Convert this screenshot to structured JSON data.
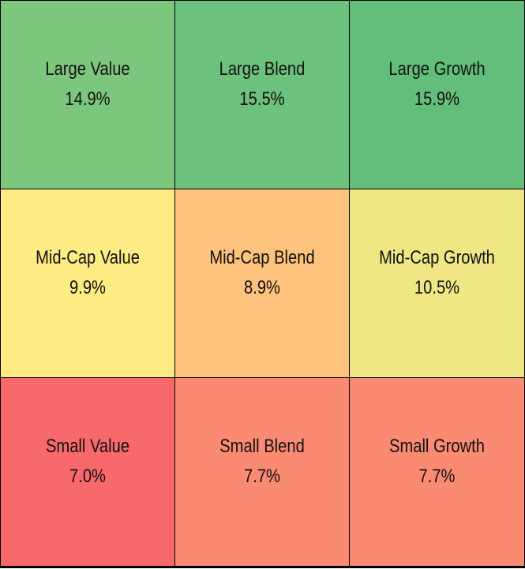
{
  "chart_data": {
    "type": "heatmap",
    "rows": [
      "Large",
      "Mid-Cap",
      "Small"
    ],
    "columns": [
      "Value",
      "Blend",
      "Growth"
    ],
    "cells": [
      {
        "label": "Large Value",
        "value": 14.9,
        "display": "14.9%",
        "color": "#7DC67E"
      },
      {
        "label": "Large Blend",
        "value": 15.5,
        "display": "15.5%",
        "color": "#6CC17D"
      },
      {
        "label": "Large Growth",
        "value": 15.9,
        "display": "15.9%",
        "color": "#63BE7B"
      },
      {
        "label": "Mid-Cap Value",
        "value": 9.9,
        "display": "9.9%",
        "color": "#FFEB84"
      },
      {
        "label": "Mid-Cap Blend",
        "value": 8.9,
        "display": "8.9%",
        "color": "#FDC27C"
      },
      {
        "label": "Mid-Cap Growth",
        "value": 10.5,
        "display": "10.5%",
        "color": "#EFE684"
      },
      {
        "label": "Small Value",
        "value": 7.0,
        "display": "7.0%",
        "color": "#F8696B"
      },
      {
        "label": "Small Blend",
        "value": 7.7,
        "display": "7.7%",
        "color": "#FA8A72"
      },
      {
        "label": "Small Growth",
        "value": 7.7,
        "display": "7.7%",
        "color": "#FA8A72"
      }
    ]
  }
}
